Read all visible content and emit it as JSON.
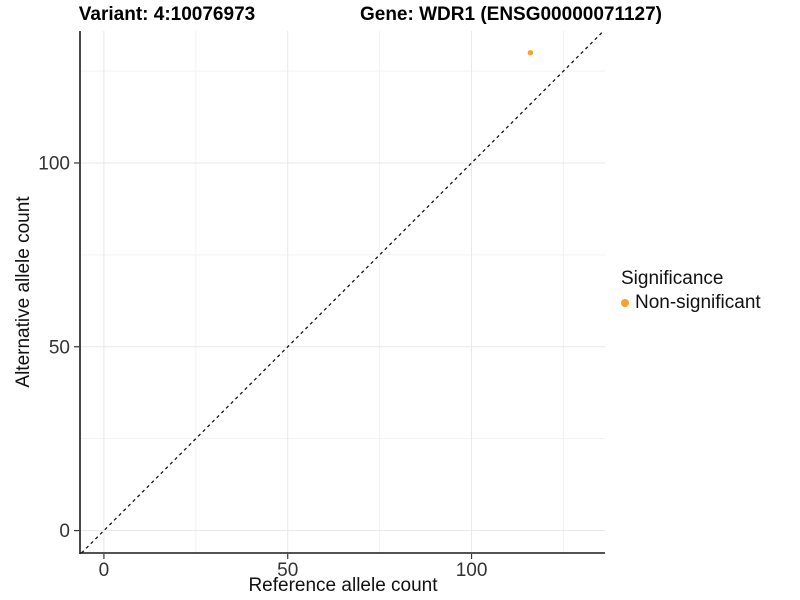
{
  "titles": {
    "variant": "Variant: 4:10076973",
    "gene": "Gene: WDR1 (ENSG00000071127)"
  },
  "axes": {
    "x": {
      "label": "Reference allele count",
      "tick_labels": [
        "0",
        "50",
        "100"
      ]
    },
    "y": {
      "label": "Alternative allele count",
      "tick_labels": [
        "0",
        "50",
        "100"
      ]
    }
  },
  "legend": {
    "title": "Significance",
    "items": [
      {
        "label": "Non-significant",
        "color": "#F8A12C",
        "marker": "circle-icon"
      }
    ]
  },
  "colors": {
    "background": "#FFFFFF",
    "point": "#F8A12C",
    "axis_line": "#1A1A1A",
    "tick": "#333333",
    "tick_label": "#333333",
    "grid_major": "#E8E8E8",
    "grid_minor": "#F2F2F2",
    "reference_line": "#111111"
  },
  "chart_data": {
    "type": "scatter",
    "title": "Variant: 4:10076973   Gene: WDR1 (ENSG00000071127)",
    "xlabel": "Reference allele count",
    "ylabel": "Alternative allele count",
    "xlim": [
      -6.5,
      136.3
    ],
    "ylim": [
      -6.1,
      135.9
    ],
    "x_major_ticks": [
      0,
      50,
      100
    ],
    "y_major_ticks": [
      0,
      50,
      100
    ],
    "x_minor_gridlines": [
      25,
      75,
      125
    ],
    "y_minor_gridlines": [
      25,
      75,
      125
    ],
    "grid": true,
    "legend_position": "right",
    "series": [
      {
        "name": "Non-significant",
        "points": [
          {
            "x": 116,
            "y": 130
          }
        ]
      }
    ],
    "reference_line": {
      "type": "identity",
      "equation": "y = x",
      "style": "dashed"
    }
  }
}
